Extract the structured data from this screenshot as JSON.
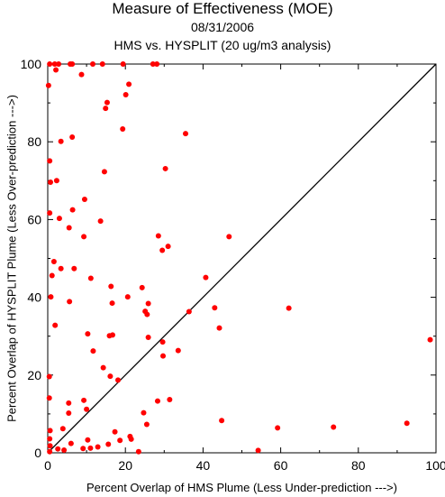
{
  "chart_data": {
    "type": "scatter",
    "title": "Measure of Effectiveness (MOE)",
    "date": "08/31/2006",
    "subtitle": "HMS vs. HYSPLIT  (20 ug/m3 analysis)",
    "xlabel": "Percent Overlap of HMS Plume (Less Under-prediction --->)",
    "ylabel": "Percent Overlap of HYSPLIT Plume (Less Over-prediction --->)",
    "xlim": [
      0,
      100
    ],
    "ylim": [
      0,
      100
    ],
    "xticks": [
      0,
      20,
      40,
      60,
      80,
      100
    ],
    "yticks": [
      0,
      20,
      40,
      60,
      80,
      100
    ],
    "reference_line": "1:1 diagonal",
    "grid": false,
    "marker_color": "#ff0000",
    "line_color": "#000000",
    "points": [
      [
        0.5,
        100
      ],
      [
        1.8,
        100
      ],
      [
        2.8,
        100
      ],
      [
        5.8,
        100
      ],
      [
        6.3,
        100
      ],
      [
        11.6,
        100
      ],
      [
        14.1,
        100
      ],
      [
        19.4,
        100
      ],
      [
        27.1,
        100
      ],
      [
        28.1,
        100
      ],
      [
        0.2,
        94.5
      ],
      [
        2.1,
        98.5
      ],
      [
        8.7,
        97.3
      ],
      [
        20.9,
        94.8
      ],
      [
        20.1,
        92.1
      ],
      [
        15.3,
        90.1
      ],
      [
        14.9,
        88.6
      ],
      [
        19.3,
        83.3
      ],
      [
        35.5,
        82.1
      ],
      [
        6.3,
        81.2
      ],
      [
        3.4,
        80.1
      ],
      [
        0.5,
        75.1
      ],
      [
        30.3,
        73.1
      ],
      [
        14.6,
        72.3
      ],
      [
        0.7,
        69.6
      ],
      [
        2.3,
        70.0
      ],
      [
        9.5,
        65.2
      ],
      [
        0.5,
        61.7
      ],
      [
        6.4,
        62.5
      ],
      [
        3.0,
        60.3
      ],
      [
        13.6,
        59.6
      ],
      [
        5.5,
        57.9
      ],
      [
        9.3,
        55.6
      ],
      [
        28.5,
        55.8
      ],
      [
        46.7,
        55.6
      ],
      [
        31.0,
        53.1
      ],
      [
        29.5,
        52.1
      ],
      [
        1.6,
        49.2
      ],
      [
        3.4,
        47.4
      ],
      [
        6.8,
        47.4
      ],
      [
        1.1,
        45.6
      ],
      [
        11.1,
        44.9
      ],
      [
        40.7,
        45.1
      ],
      [
        16.3,
        42.8
      ],
      [
        24.3,
        42.5
      ],
      [
        0.8,
        40.1
      ],
      [
        20.6,
        40.1
      ],
      [
        5.6,
        38.9
      ],
      [
        16.6,
        38.5
      ],
      [
        25.9,
        38.4
      ],
      [
        25.1,
        36.4
      ],
      [
        25.6,
        35.6
      ],
      [
        36.4,
        36.3
      ],
      [
        43.0,
        37.3
      ],
      [
        62.1,
        37.2
      ],
      [
        1.9,
        32.8
      ],
      [
        44.2,
        32.1
      ],
      [
        10.3,
        30.6
      ],
      [
        15.9,
        30.1
      ],
      [
        16.7,
        30.3
      ],
      [
        25.9,
        29.7
      ],
      [
        29.6,
        28.5
      ],
      [
        98.5,
        29.1
      ],
      [
        11.7,
        26.2
      ],
      [
        33.6,
        26.3
      ],
      [
        29.7,
        24.9
      ],
      [
        14.3,
        21.9
      ],
      [
        18.1,
        18.7
      ],
      [
        0.4,
        19.6
      ],
      [
        16.1,
        19.7
      ],
      [
        0.4,
        14.1
      ],
      [
        9.3,
        13.5
      ],
      [
        5.4,
        12.8
      ],
      [
        28.3,
        13.3
      ],
      [
        31.4,
        13.7
      ],
      [
        10.0,
        11.2
      ],
      [
        5.4,
        10.2
      ],
      [
        24.7,
        10.3
      ],
      [
        25.5,
        7.3
      ],
      [
        44.8,
        8.3
      ],
      [
        92.5,
        7.6
      ],
      [
        73.6,
        6.6
      ],
      [
        59.2,
        6.4
      ],
      [
        0.6,
        5.7
      ],
      [
        3.9,
        6.2
      ],
      [
        17.3,
        5.4
      ],
      [
        21.2,
        4.2
      ],
      [
        0.5,
        3.6
      ],
      [
        21.5,
        3.5
      ],
      [
        10.3,
        3.3
      ],
      [
        18.6,
        3.2
      ],
      [
        6.0,
        2.4
      ],
      [
        15.6,
        2.2
      ],
      [
        12.9,
        1.5
      ],
      [
        11.0,
        1.2
      ],
      [
        9.1,
        1.1
      ],
      [
        2.6,
        1.0
      ],
      [
        0.5,
        0.3
      ],
      [
        23.4,
        0.3
      ],
      [
        54.2,
        0.6
      ],
      [
        0.6,
        1.8
      ],
      [
        4.2,
        0.7
      ]
    ]
  }
}
